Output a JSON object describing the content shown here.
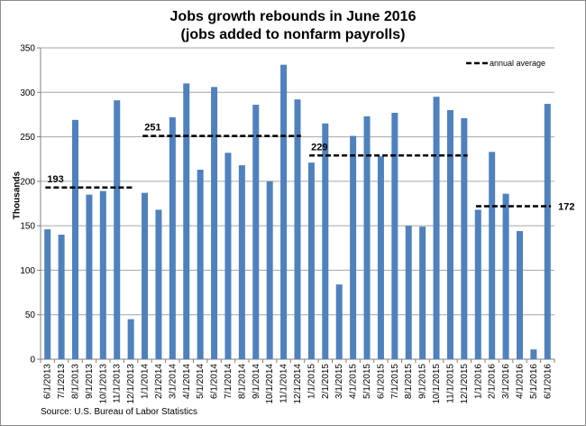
{
  "chart_data": {
    "type": "bar",
    "title_line1": "Jobs growth rebounds in June 2016",
    "title_line2": "(jobs added to nonfarm payrolls)",
    "ylabel": "Thousands",
    "source": "Source: U.S. Bureau of Labor Statistics",
    "ylim": [
      0,
      350
    ],
    "yticks": [
      0,
      50,
      100,
      150,
      200,
      250,
      300,
      350
    ],
    "grid": true,
    "bar_color": "#4f81bd",
    "categories": [
      "6/1/2013",
      "7/1/2013",
      "8/1/2013",
      "9/1/2013",
      "10/1/2013",
      "11/1/2013",
      "12/1/2013",
      "1/1/2014",
      "2/1/2014",
      "3/1/2014",
      "4/1/2014",
      "5/1/2014",
      "6/1/2014",
      "7/1/2014",
      "8/1/2014",
      "9/1/2014",
      "10/1/2014",
      "11/1/2014",
      "12/1/2014",
      "1/1/2015",
      "2/1/2015",
      "3/1/2015",
      "4/1/2015",
      "5/1/2015",
      "6/1/2015",
      "7/1/2015",
      "8/1/2015",
      "9/1/2015",
      "10/1/2015",
      "11/1/2015",
      "12/1/2015",
      "1/1/2016",
      "2/1/2016",
      "3/1/2016",
      "4/1/2016",
      "5/1/2016",
      "6/1/2016"
    ],
    "values": [
      146,
      140,
      269,
      185,
      189,
      291,
      45,
      187,
      168,
      272,
      310,
      213,
      306,
      232,
      218,
      286,
      200,
      331,
      292,
      221,
      265,
      84,
      251,
      273,
      228,
      277,
      150,
      149,
      295,
      280,
      271,
      168,
      233,
      186,
      144,
      11,
      287
    ],
    "legend": {
      "label": "annual average",
      "position": "top-right"
    },
    "annual_averages": [
      {
        "label": "193",
        "value": 193,
        "start": "6/1/2013",
        "end": "12/1/2013"
      },
      {
        "label": "251",
        "value": 251,
        "start": "1/1/2014",
        "end": "12/1/2014"
      },
      {
        "label": "229",
        "value": 229,
        "start": "1/1/2015",
        "end": "12/1/2015"
      },
      {
        "label": "172",
        "value": 172,
        "start": "1/1/2016",
        "end": "6/1/2016"
      }
    ]
  }
}
